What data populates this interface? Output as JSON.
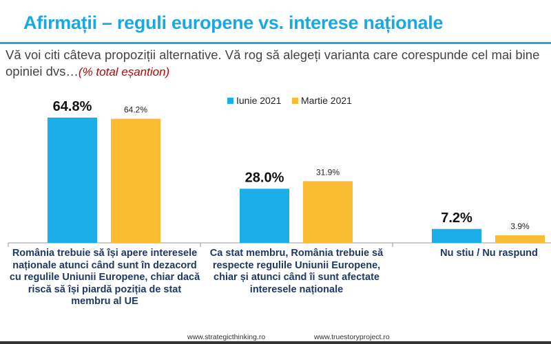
{
  "title": "Afirmații – reguli europene vs. interese naționale",
  "subtitle": "Vă voi citi câteva propoziții alternative. Vă rog să alegeți varianta care corespunde cel mai bine opiniei dvs…",
  "subtitle_note": "(% total eșantion)",
  "chart_data": {
    "type": "bar",
    "categories": [
      "România trebuie să își apere interesele naționale atunci când sunt în dezacord cu regulile Uniunii Europene, chiar dacă riscă să își piardă poziția de stat membru al UE",
      "Ca stat membru, România trebuie să respecte regulile Uniunii Europene, chiar și atunci când îi sunt afectate interesele naționale",
      "Nu stiu / Nu raspund"
    ],
    "series": [
      {
        "name": "Iunie 2021",
        "values": [
          64.8,
          28.0,
          7.2
        ],
        "labels": [
          "64.8%",
          "28.0%",
          "7.2%"
        ],
        "color": "#1BAEE8"
      },
      {
        "name": "Martie 2021",
        "values": [
          64.2,
          31.9,
          3.9
        ],
        "labels": [
          "64.2%",
          "31.9%",
          "3.9%"
        ],
        "color": "#FBBC33"
      }
    ],
    "ylim": [
      0,
      70
    ],
    "grid": false,
    "legend": "top"
  },
  "footer": {
    "left": "www.strategicthinking.ro",
    "right": "www.truestoryproject.ro"
  }
}
